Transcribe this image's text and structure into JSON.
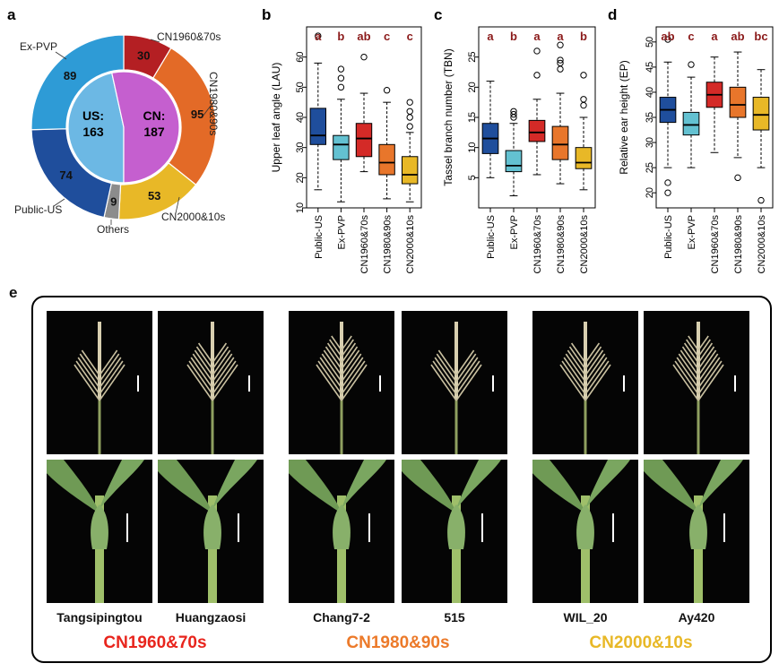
{
  "panel_letters": {
    "a": "a",
    "b": "b",
    "c": "c",
    "d": "d",
    "e": "e"
  },
  "chart_data": [
    {
      "type": "pie",
      "panel": "a",
      "inner": [
        {
          "label": "US:",
          "value_text": "163",
          "value": 163,
          "color": "#6cb8e4"
        },
        {
          "label": "CN:",
          "value_text": "187",
          "value": 187,
          "color": "#c55fcf"
        }
      ],
      "outer": [
        {
          "name": "CN1960&70s",
          "value": 30,
          "color": "#b41f23"
        },
        {
          "name": "CN1980&90s",
          "value": 95,
          "color": "#e36a27"
        },
        {
          "name": "CN2000&10s",
          "value": 53,
          "color": "#e8b827"
        },
        {
          "name": "Others",
          "value": 9,
          "color": "#8c8c8c"
        },
        {
          "name": "Public-US",
          "value": 74,
          "color": "#1f4e9c"
        },
        {
          "name": "Ex-PVP",
          "value": 89,
          "color": "#2e9bd6"
        }
      ]
    },
    {
      "type": "box",
      "panel": "b",
      "ylabel": "Upper leaf angle (LAU)",
      "ylim": [
        10,
        70
      ],
      "yticks": [
        10,
        20,
        30,
        40,
        50,
        60
      ],
      "categories": [
        "Public-US",
        "Ex-PVP",
        "CN1960&70s",
        "CN1980&90s",
        "CN2000&10s"
      ],
      "letters": [
        "a",
        "b",
        "ab",
        "c",
        "c"
      ],
      "colors": [
        "#1f4e9c",
        "#63c1d1",
        "#d42a27",
        "#e8762b",
        "#e8b827"
      ],
      "boxes": [
        {
          "lw": 16,
          "q1": 31,
          "med": 34,
          "q3": 43,
          "uw": 58,
          "out": [
            67
          ]
        },
        {
          "lw": 12,
          "q1": 26,
          "med": 31,
          "q3": 34,
          "uw": 46,
          "out": [
            50,
            53,
            56
          ]
        },
        {
          "lw": 22,
          "q1": 27,
          "med": 33,
          "q3": 38,
          "uw": 48,
          "out": [
            60
          ]
        },
        {
          "lw": 13,
          "q1": 21,
          "med": 25,
          "q3": 31,
          "uw": 45,
          "out": [
            49
          ]
        },
        {
          "lw": 12,
          "q1": 18,
          "med": 21,
          "q3": 27,
          "uw": 35,
          "out": [
            37,
            40,
            42,
            45
          ]
        }
      ]
    },
    {
      "type": "box",
      "panel": "c",
      "ylabel": "Tassel branch number (TBN)",
      "ylim": [
        0,
        30
      ],
      "yticks": [
        5,
        10,
        15,
        20,
        25
      ],
      "categories": [
        "Public-US",
        "Ex-PVP",
        "CN1960&70s",
        "CN1980&90s",
        "CN2000&10s"
      ],
      "letters": [
        "a",
        "b",
        "a",
        "a",
        "b"
      ],
      "colors": [
        "#1f4e9c",
        "#63c1d1",
        "#d42a27",
        "#e8762b",
        "#e8b827"
      ],
      "boxes": [
        {
          "lw": 5,
          "q1": 9,
          "med": 11.5,
          "q3": 14,
          "uw": 21,
          "out": []
        },
        {
          "lw": 2,
          "q1": 6,
          "med": 7,
          "q3": 9.5,
          "uw": 14,
          "out": [
            15,
            15.5,
            16
          ]
        },
        {
          "lw": 5.5,
          "q1": 11,
          "med": 12.5,
          "q3": 14.5,
          "uw": 18,
          "out": [
            22,
            26
          ]
        },
        {
          "lw": 4,
          "q1": 8,
          "med": 10.5,
          "q3": 13.5,
          "uw": 19,
          "out": [
            23,
            24,
            24.5,
            27
          ]
        },
        {
          "lw": 3,
          "q1": 6.5,
          "med": 7.5,
          "q3": 10,
          "uw": 15,
          "out": [
            17,
            18,
            22
          ]
        }
      ]
    },
    {
      "type": "box",
      "panel": "d",
      "ylabel": "Relative ear height (EP)",
      "ylim": [
        17,
        53
      ],
      "yticks": [
        20,
        25,
        30,
        35,
        40,
        45,
        50
      ],
      "categories": [
        "Public-US",
        "Ex-PVP",
        "CN1960&70s",
        "CN1980&90s",
        "CN2000&10s"
      ],
      "letters": [
        "ab",
        "c",
        "a",
        "ab",
        "bc"
      ],
      "colors": [
        "#1f4e9c",
        "#63c1d1",
        "#d42a27",
        "#e8762b",
        "#e8b827"
      ],
      "boxes": [
        {
          "lw": 25,
          "q1": 34,
          "med": 36.5,
          "q3": 39,
          "uw": 46,
          "out": [
            20,
            22,
            50.5
          ]
        },
        {
          "lw": 25,
          "q1": 31.5,
          "med": 33.5,
          "q3": 36,
          "uw": 43,
          "out": [
            45.5
          ]
        },
        {
          "lw": 28,
          "q1": 37,
          "med": 39.5,
          "q3": 42,
          "uw": 47,
          "out": []
        },
        {
          "lw": 27,
          "q1": 35,
          "med": 37.5,
          "q3": 41,
          "uw": 48,
          "out": [
            23
          ]
        },
        {
          "lw": 25,
          "q1": 32.5,
          "med": 35.5,
          "q3": 39,
          "uw": 44.5,
          "out": [
            18.5
          ]
        }
      ]
    }
  ],
  "panel_e": {
    "groups": [
      {
        "era": "CN1960&70s",
        "color": "#e8251d",
        "plants": [
          "Tangsipingtou",
          "Huangzaosi"
        ]
      },
      {
        "era": "CN1980&90s",
        "color": "#ec7a2a",
        "plants": [
          "Chang7-2",
          "515"
        ]
      },
      {
        "era": "CN2000&10s",
        "color": "#e8b827",
        "plants": [
          "WIL_20",
          "Ay420"
        ]
      }
    ]
  }
}
